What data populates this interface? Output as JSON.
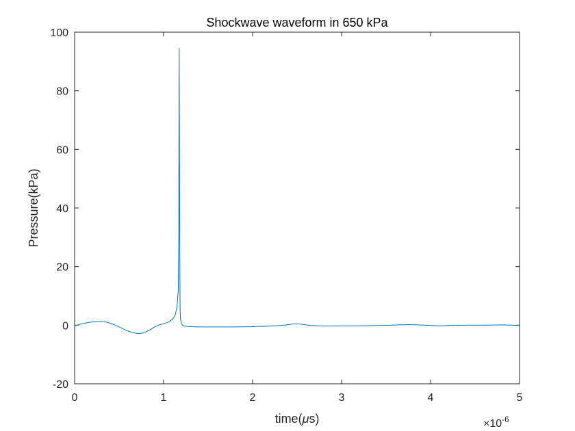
{
  "chart_data": {
    "type": "line",
    "title": "Shockwave waveform in 650 kPa",
    "xlabel_prefix": "time(",
    "xlabel_mu": "μ",
    "xlabel_suffix": "s)",
    "ylabel": "Pressure(kPa)",
    "x_exponent_multiplier": "×10",
    "x_exponent_power": "-6",
    "xlim": [
      0,
      5
    ],
    "ylim": [
      -20,
      100
    ],
    "xticks": [
      0,
      1,
      2,
      3,
      4,
      5
    ],
    "xtick_labels": [
      "0",
      "1",
      "2",
      "3",
      "4",
      "5"
    ],
    "yticks": [
      -20,
      0,
      20,
      40,
      60,
      80,
      100
    ],
    "ytick_labels": [
      "-20",
      "0",
      "20",
      "40",
      "60",
      "80",
      "100"
    ],
    "grid": false,
    "line_color": "#0072BD",
    "series": [
      {
        "x": [
          0,
          0.05,
          0.1,
          0.15,
          0.2,
          0.25,
          0.3,
          0.35,
          0.4,
          0.45,
          0.5,
          0.55,
          0.6,
          0.65,
          0.7,
          0.75,
          0.8,
          0.85,
          0.9,
          0.95,
          1.0,
          1.05,
          1.1,
          1.13,
          1.15,
          1.165,
          1.17,
          1.175,
          1.18,
          1.185,
          1.19,
          1.2,
          1.22,
          1.25,
          1.3,
          1.4,
          1.6,
          1.8,
          2.0,
          2.2,
          2.35,
          2.45,
          2.5,
          2.55,
          2.65,
          2.8,
          3.0,
          3.2,
          3.4,
          3.55,
          3.65,
          3.75,
          3.85,
          4.0,
          4.1,
          4.2,
          4.4,
          4.6,
          4.8,
          5.0
        ],
        "y": [
          -0.2,
          0.2,
          0.6,
          0.9,
          1.1,
          1.3,
          1.3,
          1.1,
          0.7,
          0.1,
          -0.6,
          -1.3,
          -2.0,
          -2.5,
          -2.8,
          -2.8,
          -2.3,
          -1.5,
          -0.6,
          0.1,
          0.5,
          1.0,
          2.0,
          3.5,
          6.0,
          12.0,
          30.0,
          94.5,
          40.0,
          6.0,
          2.0,
          0.5,
          -0.2,
          -0.4,
          -0.5,
          -0.6,
          -0.6,
          -0.6,
          -0.5,
          -0.3,
          0.0,
          0.4,
          0.5,
          0.3,
          -0.1,
          -0.3,
          -0.2,
          -0.2,
          -0.1,
          0.0,
          0.1,
          0.2,
          0.1,
          -0.1,
          -0.2,
          -0.1,
          0.0,
          0.0,
          0.1,
          -0.1
        ]
      }
    ]
  }
}
